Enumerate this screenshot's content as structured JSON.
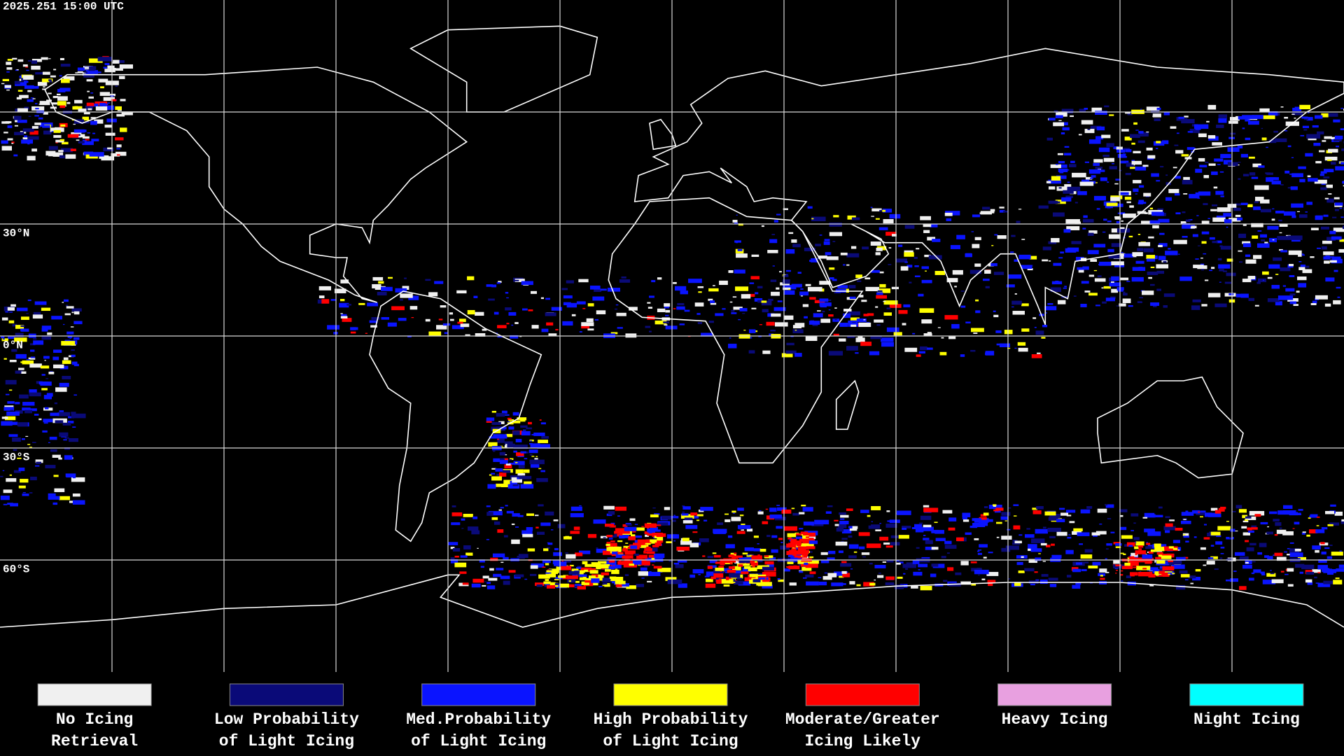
{
  "header": {
    "timestamp": "2025.251 15:00 UTC"
  },
  "grid": {
    "lat_labels": [
      "30°N",
      "0°N",
      "30°S",
      "60°S"
    ]
  },
  "legend": {
    "items": [
      {
        "lines": [
          "No Icing",
          "Retrieval"
        ],
        "color": "#f0f0f0"
      },
      {
        "lines": [
          "Low Probability",
          "of Light Icing"
        ],
        "color": "#0a0a78"
      },
      {
        "lines": [
          "Med.Probability",
          "of Light Icing"
        ],
        "color": "#0a14ff"
      },
      {
        "lines": [
          "High Probability",
          "of Light Icing"
        ],
        "color": "#ffff00"
      },
      {
        "lines": [
          "Moderate/Greater",
          "Icing Likely"
        ],
        "color": "#ff0000"
      },
      {
        "lines": [
          "Heavy Icing"
        ],
        "color": "#e8a0e0"
      },
      {
        "lines": [
          "Night Icing"
        ],
        "color": "#00ffff"
      }
    ]
  }
}
